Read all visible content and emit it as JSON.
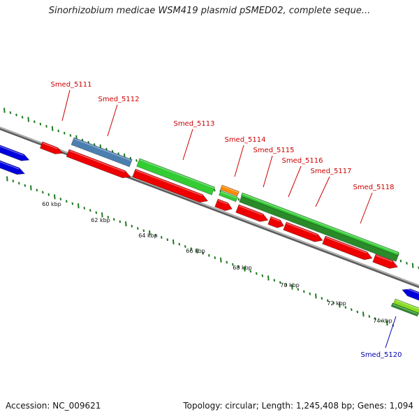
{
  "title": "Sinorhizobium medicae WSM419 plasmid pSMED02, complete seque...",
  "footer": {
    "accession": "Accession: NC_009621",
    "summary": "Topology: circular; Length: 1,245,408 bp; Genes: 1,094"
  },
  "scale_labels": [
    "60 kbp",
    "62 kbp",
    "64 kbp",
    "66 kbp",
    "68 kbp",
    "70 kbp",
    "72 kbp",
    "74 kbp"
  ],
  "gene_labels": [
    {
      "text": "Smed_5111",
      "color": "#cc0000"
    },
    {
      "text": "Smed_5112",
      "color": "#cc0000"
    },
    {
      "text": "Smed_5113",
      "color": "#cc0000"
    },
    {
      "text": "Smed_5114",
      "color": "#cc0000"
    },
    {
      "text": "Smed_5115",
      "color": "#cc0000"
    },
    {
      "text": "Smed_5116",
      "color": "#cc0000"
    },
    {
      "text": "Smed_5117",
      "color": "#cc0000"
    },
    {
      "text": "Smed_5118",
      "color": "#cc0000"
    },
    {
      "text": "Smed_5120",
      "color": "#0000aa"
    }
  ],
  "colors": {
    "backbone": "#8a8a8a",
    "tick": "#1f7a1f",
    "red": "#ee0000",
    "blue_dark": "#0000dd",
    "steel": "#4a7fb0",
    "green": "#33cc33",
    "green_dark": "#2a8a2a",
    "green_light": "#88dd22",
    "orange": "#ff8800"
  }
}
